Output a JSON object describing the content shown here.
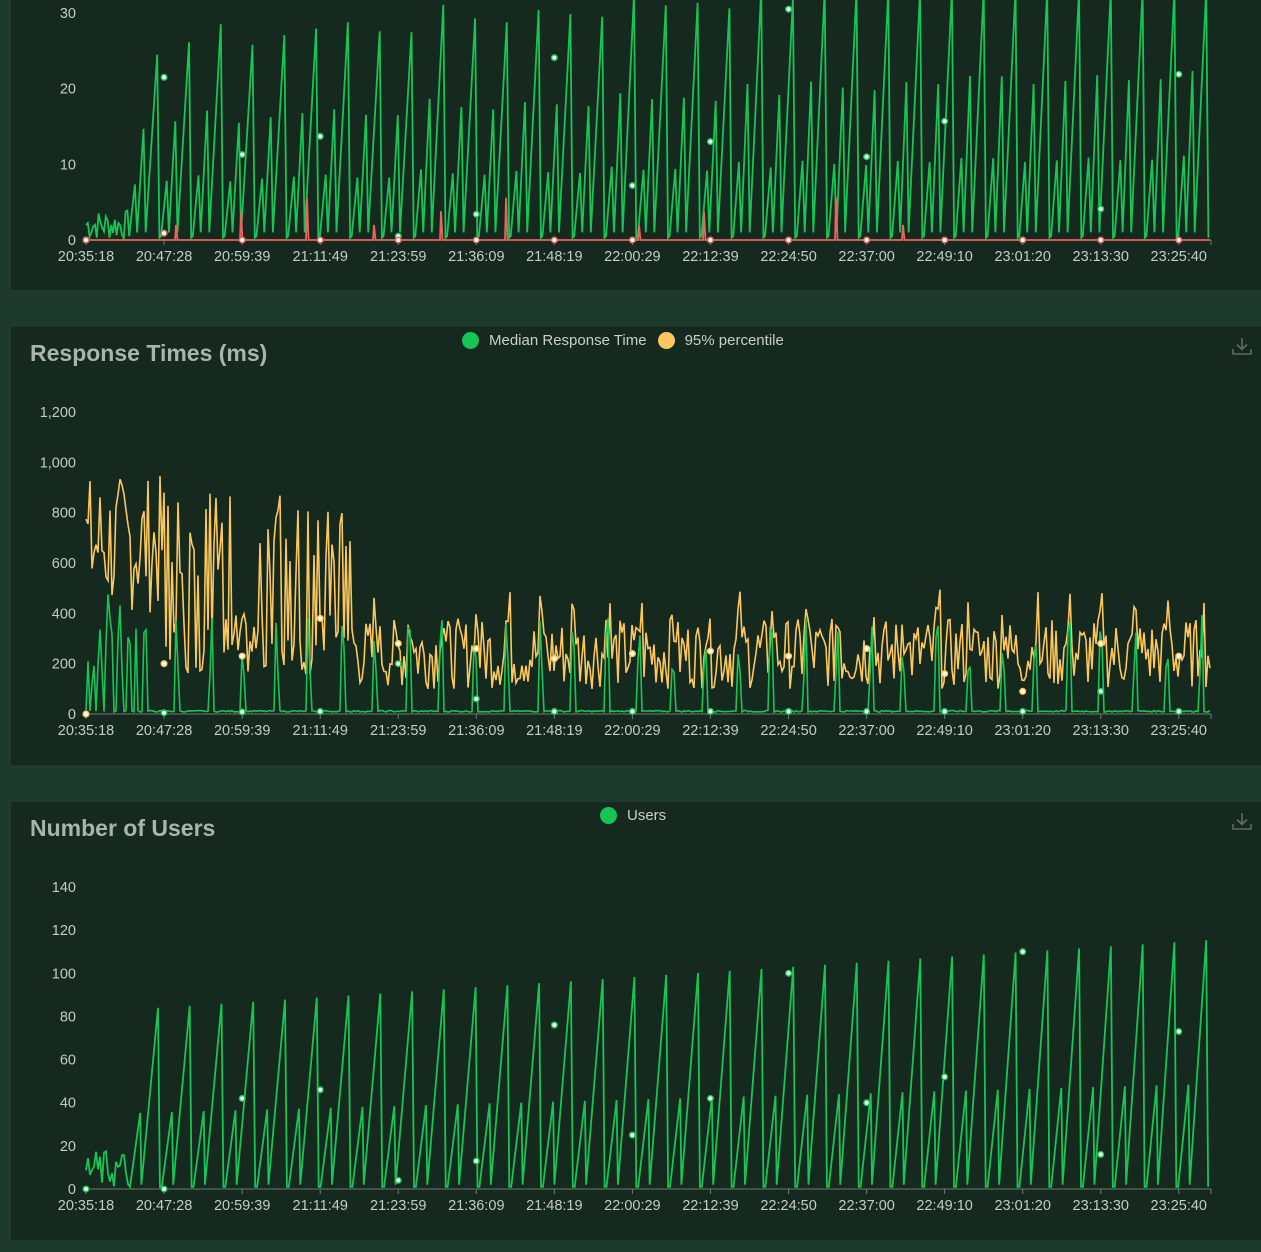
{
  "colors": {
    "background": "#1d3a2c",
    "panel": "#15291f",
    "green": "#17c455",
    "yellow": "#fcc75d",
    "red": "#e8645f",
    "axis_text": "#c3cdc8",
    "title": "#a9b4b0"
  },
  "x_tick_labels": [
    "20:35:18",
    "20:47:28",
    "20:59:39",
    "21:11:49",
    "21:23:59",
    "21:36:09",
    "21:48:19",
    "22:00:29",
    "22:12:39",
    "22:24:50",
    "22:37:00",
    "22:49:10",
    "23:01:20",
    "23:13:30",
    "23:25:40"
  ],
  "panels": {
    "rps": {
      "title": ""
    },
    "response": {
      "title": "Response Times (ms)",
      "legend": [
        "Median Response Time",
        "95% percentile"
      ],
      "download_icon": "download-icon"
    },
    "users": {
      "title": "Number of Users",
      "legend": [
        "Users"
      ],
      "download_icon": "download-icon"
    }
  },
  "chart_data": [
    {
      "type": "line",
      "title": "",
      "x": [
        "20:35:18",
        "20:47:28",
        "20:59:39",
        "21:11:49",
        "21:23:59",
        "21:36:09",
        "21:48:19",
        "22:00:29",
        "22:12:39",
        "22:24:50",
        "22:37:00",
        "22:49:10",
        "23:01:20",
        "23:13:30",
        "23:25:40"
      ],
      "y_ticks": [
        "0",
        "10",
        "20",
        "30"
      ],
      "ylim": [
        0,
        30
      ],
      "series": [
        {
          "color": "#17c455",
          "values": [
            0,
            21.5,
            11.3,
            13.7,
            0.5,
            3.4,
            24.1,
            7.2,
            13,
            30.5,
            11,
            15.7,
            0,
            4.1,
            21.9
          ]
        },
        {
          "color": "#e8645f",
          "values": [
            0,
            0.9,
            0,
            0,
            0,
            0,
            0,
            0,
            0,
            0,
            0,
            0,
            0,
            0,
            0
          ]
        }
      ]
    },
    {
      "type": "line",
      "title": "Response Times (ms)",
      "x": [
        "20:35:18",
        "20:47:28",
        "20:59:39",
        "21:11:49",
        "21:23:59",
        "21:36:09",
        "21:48:19",
        "22:00:29",
        "22:12:39",
        "22:24:50",
        "22:37:00",
        "22:49:10",
        "23:01:20",
        "23:13:30",
        "23:25:40"
      ],
      "y_ticks": [
        "0",
        "200",
        "400",
        "600",
        "800",
        "1,000",
        "1,200"
      ],
      "ylim": [
        0,
        1200
      ],
      "series": [
        {
          "name": "Median Response Time",
          "color": "#17c455",
          "values": [
            0,
            5,
            8,
            10,
            200,
            60,
            10,
            10,
            10,
            10,
            10,
            10,
            10,
            90,
            10
          ]
        },
        {
          "name": "95% percentile",
          "color": "#fcc75d",
          "values": [
            0,
            200,
            230,
            380,
            280,
            260,
            220,
            240,
            250,
            230,
            260,
            160,
            90,
            280,
            230
          ]
        }
      ]
    },
    {
      "type": "line",
      "title": "Number of Users",
      "x": [
        "20:35:18",
        "20:47:28",
        "20:59:39",
        "21:11:49",
        "21:23:59",
        "21:36:09",
        "21:48:19",
        "22:00:29",
        "22:12:39",
        "22:24:50",
        "22:37:00",
        "22:49:10",
        "23:01:20",
        "23:13:30",
        "23:25:40"
      ],
      "y_ticks": [
        "0",
        "20",
        "40",
        "60",
        "80",
        "100",
        "120",
        "140"
      ],
      "ylim": [
        0,
        140
      ],
      "series": [
        {
          "name": "Users",
          "color": "#17c455",
          "values": [
            0,
            0,
            42,
            46,
            4,
            13,
            76,
            25,
            42,
            100,
            40,
            52,
            110,
            16,
            73
          ]
        }
      ]
    }
  ]
}
